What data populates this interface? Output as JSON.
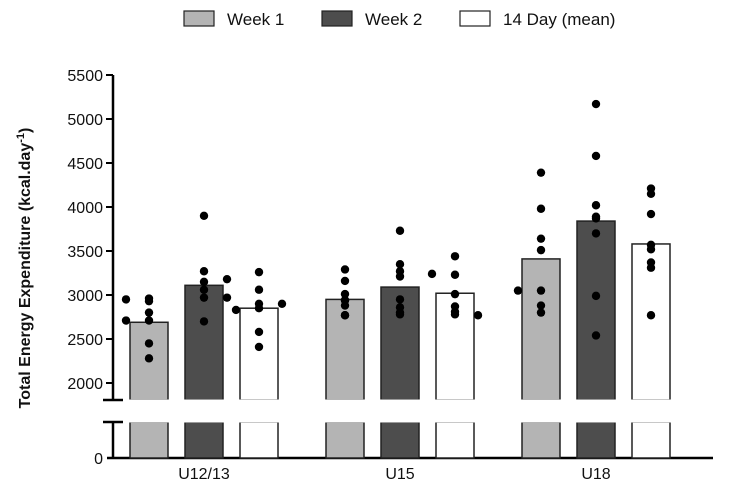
{
  "chart_data": {
    "type": "bar",
    "title": "",
    "xlabel": "",
    "ylabel": "Total Energy Expenditure (kcal.day",
    "ylabel_superscript": "-1",
    "ylabel_suffix": ")",
    "ylim": [
      2000,
      5500
    ],
    "y_break": true,
    "y_break_lower_tick": "0",
    "yticks": [
      2000,
      2500,
      3000,
      3500,
      4000,
      4500,
      5000,
      5500
    ],
    "grid": false,
    "legend_position": "top",
    "categories": [
      "U12/13",
      "U15",
      "U18"
    ],
    "series": [
      {
        "name": "Week 1",
        "color": "#b4b4b4",
        "values": [
          2690,
          2950,
          3410
        ],
        "points": [
          [
            2960,
            2930,
            2950,
            2800,
            2710,
            2710,
            2450,
            2280
          ],
          [
            3290,
            3160,
            3010,
            2940,
            2940,
            2880,
            2770,
            2770
          ],
          [
            4390,
            3980,
            3640,
            3510,
            3050,
            3050,
            2880,
            2800
          ]
        ]
      },
      {
        "name": "Week 2",
        "color": "#4d4d4d",
        "values": [
          3110,
          3090,
          3840
        ],
        "points": [
          [
            3900,
            3270,
            3150,
            3180,
            3060,
            2970,
            2970,
            2700
          ],
          [
            3730,
            3350,
            3270,
            3210,
            2950,
            2860,
            2780,
            2800
          ],
          [
            5170,
            4580,
            4020,
            3890,
            3870,
            3700,
            2990,
            2540
          ]
        ]
      },
      {
        "name": "14 Day (mean)",
        "color": "#ffffff",
        "values": [
          2850,
          3020,
          3580
        ],
        "points": [
          [
            3260,
            3060,
            2900,
            2900,
            2850,
            2830,
            2580,
            2410
          ],
          [
            3440,
            3230,
            3240,
            3010,
            2870,
            2810,
            2770,
            2780
          ],
          [
            4210,
            4150,
            3920,
            3570,
            3520,
            3370,
            3310,
            2770
          ]
        ]
      }
    ]
  }
}
